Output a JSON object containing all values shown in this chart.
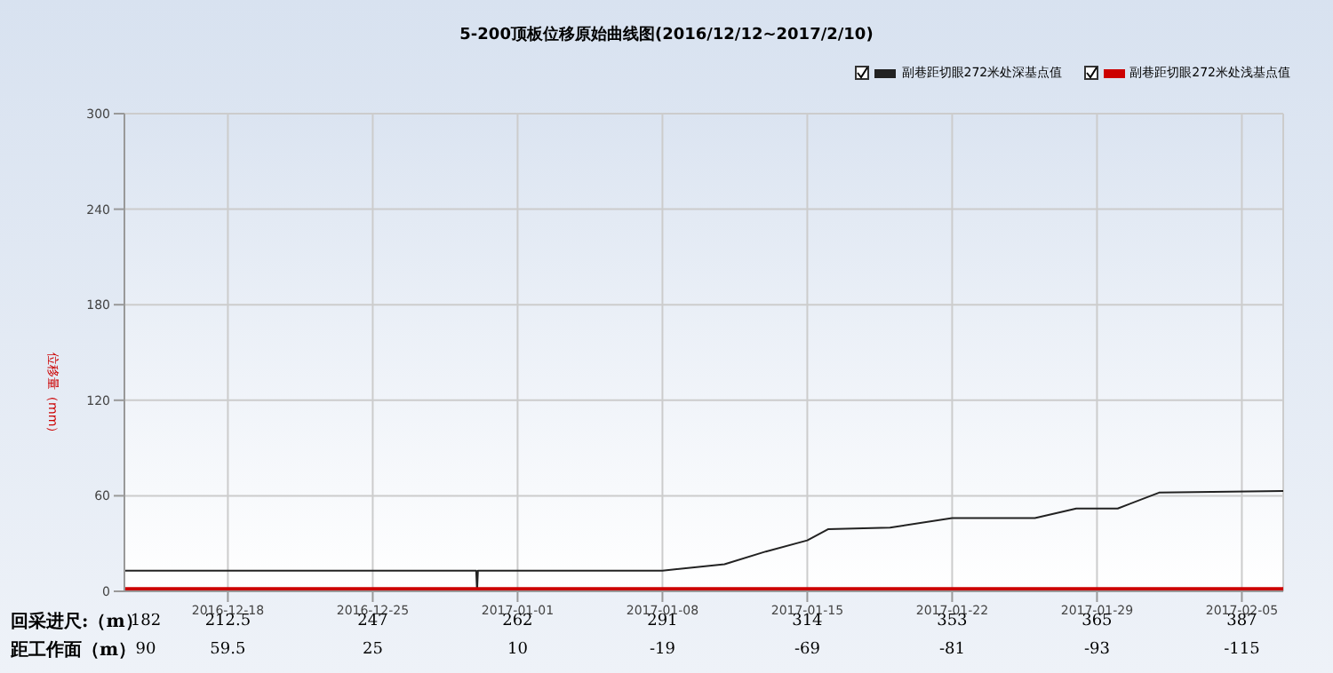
{
  "chart_data": {
    "type": "line",
    "title": "5-200顶板位移原始曲线图(2016/12/12~2017/2/10)",
    "ylabel": "位移量（mm）",
    "xlim": [
      "2016-12-13",
      "2017-02-07"
    ],
    "xticks": [
      "2016-12-18",
      "2016-12-25",
      "2017-01-01",
      "2017-01-08",
      "2017-01-15",
      "2017-01-22",
      "2017-01-29",
      "2017-02-05"
    ],
    "ylim": [
      0,
      300
    ],
    "yticks": [
      0,
      60,
      120,
      180,
      240,
      300
    ],
    "grid": true,
    "legend": "top right",
    "marker": "none",
    "line_style": "solid",
    "series": [
      {
        "name": "副巷距切眼272米处深基点值",
        "color": "#222222",
        "x": [
          "2016-12-13",
          "2016-12-30",
          "2016-12-30T01:00",
          "2016-12-30T02:00",
          "2017-01-08",
          "2017-01-11",
          "2017-01-13",
          "2017-01-15",
          "2017-01-16",
          "2017-01-19",
          "2017-01-22",
          "2017-01-26",
          "2017-01-28",
          "2017-01-30",
          "2017-02-01",
          "2017-02-07"
        ],
        "values": [
          13,
          13,
          0,
          13,
          13,
          17,
          25,
          32,
          39,
          40,
          46,
          46,
          52,
          52,
          62,
          63
        ]
      },
      {
        "name": "副巷距切眼272米处浅基点值",
        "color": "#cc0000",
        "x": [
          "2016-12-13",
          "2016-12-31",
          "2017-01-08",
          "2017-01-15",
          "2017-01-22",
          "2017-01-29",
          "2017-02-07"
        ],
        "values": [
          1,
          1,
          1,
          1,
          1,
          1,
          1
        ]
      }
    ],
    "annotations": [
      "回采进尺:（m）",
      "182",
      "212.5",
      "247",
      "262",
      "291",
      "314",
      "353",
      "365",
      "387",
      "距工作面（m）",
      "90",
      "59.5",
      "25",
      "10",
      "-19",
      "-69",
      "-81",
      "-93",
      "-115"
    ]
  }
}
